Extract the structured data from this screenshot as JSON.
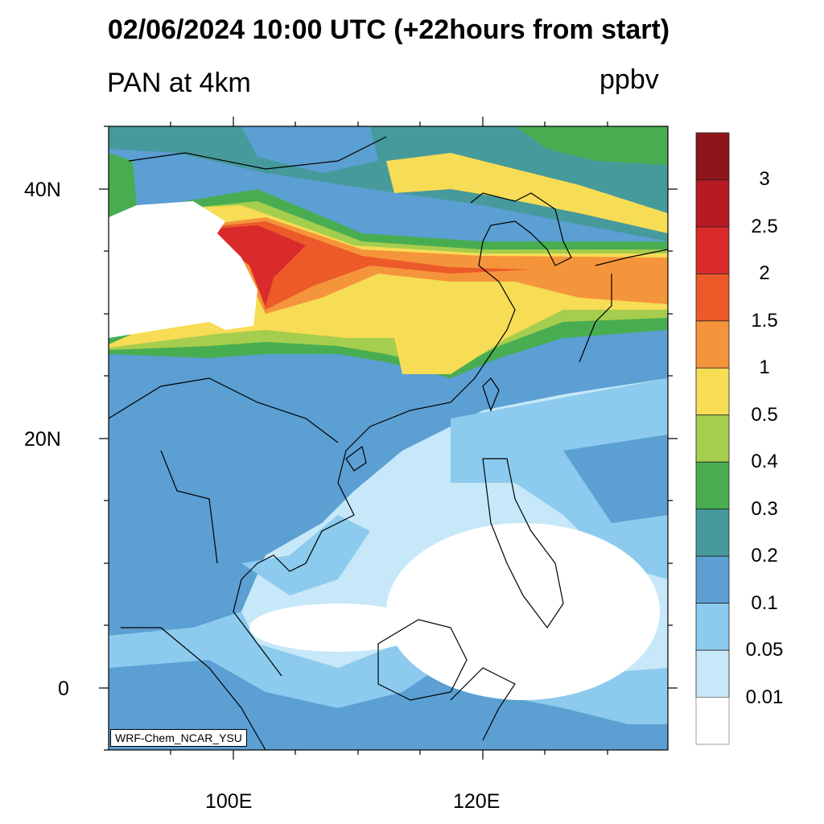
{
  "title": "02/06/2024 10:00 UTC (+22hours from start)",
  "left_title": "PAN at 4km",
  "right_title": "ppbv",
  "stamp": "WRF-Chem_NCAR_YSU",
  "x_ticks": [
    "100E",
    "120E"
  ],
  "y_ticks": [
    "40N",
    "20N",
    "0"
  ],
  "colorbar": {
    "labels": [
      "3",
      "2.5",
      "2",
      "1.5",
      "1",
      "0.5",
      "0.4",
      "0.3",
      "0.2",
      "0.1",
      "0.05",
      "0.01"
    ],
    "colors": [
      "#8e1519",
      "#b61a22",
      "#d92b2b",
      "#ec5a2a",
      "#f5953b",
      "#f7dc55",
      "#a5cd4e",
      "#48ad51",
      "#469a9b",
      "#5b9fd3",
      "#8ccbee",
      "#c6e8f8",
      "#ffffff"
    ]
  }
}
